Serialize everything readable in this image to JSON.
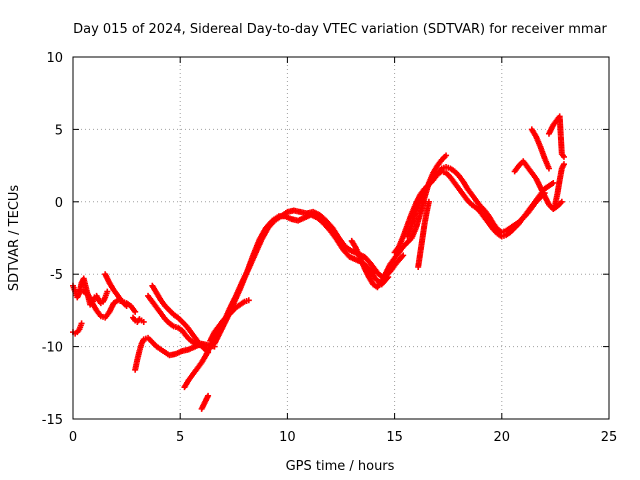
{
  "chart_data": {
    "type": "scatter",
    "title": "Day 015 of 2024, Sidereal Day-to-day VTEC variation (SDTVAR) for receiver mmar",
    "xlabel": "GPS time / hours",
    "ylabel": "SDTVAR / TECUs",
    "xlim": [
      0,
      25
    ],
    "ylim": [
      -15,
      10
    ],
    "xticks": [
      0,
      5,
      10,
      15,
      20,
      25
    ],
    "yticks": [
      -15,
      -10,
      -5,
      0,
      5,
      10
    ],
    "grid": true,
    "marker": "+",
    "color": "#ff0000",
    "series": [
      {
        "x": [
          0.0,
          0.1,
          0.2,
          0.3,
          0.4,
          0.5,
          0.6,
          0.7,
          0.8,
          0.9,
          1.0,
          1.1,
          1.2,
          1.3,
          1.4,
          1.5,
          1.6
        ],
        "y": [
          -5.8,
          -6.2,
          -6.6,
          -6.3,
          -5.6,
          -5.3,
          -5.9,
          -6.5,
          -7.1,
          -7.0,
          -6.6,
          -6.5,
          -6.8,
          -7.0,
          -6.9,
          -6.6,
          -6.2
        ]
      },
      {
        "x": [
          0.0,
          0.1,
          0.2,
          0.3,
          0.4
        ],
        "y": [
          -9.0,
          -9.1,
          -9.0,
          -8.8,
          -8.4
        ]
      },
      {
        "x": [
          0.5,
          0.7,
          0.9,
          1.1,
          1.3,
          1.5,
          1.7,
          1.9,
          2.1,
          2.3,
          2.5,
          2.7,
          2.9
        ],
        "y": [
          -6.2,
          -6.4,
          -7.0,
          -7.5,
          -7.9,
          -8.0,
          -7.6,
          -7.0,
          -6.8,
          -6.9,
          -7.0,
          -7.2,
          -7.6
        ]
      },
      {
        "x": [
          1.5,
          1.7,
          1.9,
          2.1,
          2.3,
          2.5
        ],
        "y": [
          -5.0,
          -5.6,
          -6.1,
          -6.5,
          -6.9,
          -7.2
        ]
      },
      {
        "x": [
          2.8,
          2.9,
          3.0,
          3.1,
          3.2,
          3.3
        ],
        "y": [
          -8.0,
          -8.2,
          -8.3,
          -8.1,
          -8.2,
          -8.3
        ]
      },
      {
        "x": [
          2.9,
          3.0,
          3.1,
          3.2,
          3.3,
          3.5,
          3.7,
          3.9,
          4.2,
          4.5,
          4.8,
          5.1,
          5.4,
          5.7,
          6.0,
          6.3,
          6.6
        ],
        "y": [
          -11.6,
          -10.9,
          -10.3,
          -9.8,
          -9.5,
          -9.4,
          -9.7,
          -10.0,
          -10.3,
          -10.6,
          -10.5,
          -10.3,
          -10.2,
          -10.0,
          -9.8,
          -9.9,
          -10.0
        ]
      },
      {
        "x": [
          3.5,
          3.7,
          3.9,
          4.1,
          4.3,
          4.5,
          4.7,
          4.9,
          5.1,
          5.3,
          5.5,
          5.7,
          5.9,
          6.1
        ],
        "y": [
          -6.5,
          -6.9,
          -7.3,
          -7.7,
          -8.1,
          -8.4,
          -8.6,
          -8.7,
          -8.9,
          -9.3,
          -9.6,
          -9.8,
          -9.9,
          -10.0
        ]
      },
      {
        "x": [
          3.7,
          3.9,
          4.1,
          4.3,
          4.5,
          4.7,
          4.9,
          5.1,
          5.3,
          5.5,
          5.7,
          5.9,
          6.1,
          6.3
        ],
        "y": [
          -5.8,
          -6.3,
          -6.8,
          -7.2,
          -7.5,
          -7.8,
          -8.0,
          -8.3,
          -8.6,
          -9.0,
          -9.4,
          -9.8,
          -10.1,
          -10.4
        ]
      },
      {
        "x": [
          5.2,
          5.4,
          5.6,
          5.8,
          6.0,
          6.2,
          6.4,
          6.6,
          6.8,
          7.0,
          7.2,
          7.4
        ],
        "y": [
          -12.8,
          -12.3,
          -11.9,
          -11.5,
          -11.1,
          -10.6,
          -10.0,
          -9.4,
          -8.8,
          -8.3,
          -7.9,
          -7.6
        ]
      },
      {
        "x": [
          6.0,
          6.1,
          6.2,
          6.3
        ],
        "y": [
          -14.3,
          -14.0,
          -13.7,
          -13.4
        ]
      },
      {
        "x": [
          6.4,
          6.6,
          6.8,
          7.0,
          7.2,
          7.4,
          7.6,
          7.8,
          8.0,
          8.2
        ],
        "y": [
          -9.6,
          -9.0,
          -8.6,
          -8.2,
          -7.9,
          -7.6,
          -7.3,
          -7.1,
          -6.9,
          -6.8
        ]
      },
      {
        "x": [
          6.6,
          6.9,
          7.2,
          7.5,
          7.8,
          8.1,
          8.4,
          8.7,
          9.0,
          9.3,
          9.6,
          9.9,
          10.2,
          10.5,
          10.8,
          11.1,
          11.4,
          11.7,
          12.0,
          12.3,
          12.6,
          12.9,
          13.2,
          13.5,
          13.8,
          14.1,
          14.4,
          14.7
        ],
        "y": [
          -9.8,
          -8.9,
          -8.0,
          -7.0,
          -6.0,
          -4.9,
          -3.7,
          -2.6,
          -1.8,
          -1.3,
          -1.0,
          -1.0,
          -1.2,
          -1.3,
          -1.1,
          -0.9,
          -1.1,
          -1.5,
          -2.0,
          -2.6,
          -3.3,
          -3.8,
          -4.0,
          -4.2,
          -4.6,
          -5.3,
          -5.7,
          -5.2
        ]
      },
      {
        "x": [
          7.0,
          7.3,
          7.6,
          7.9,
          8.2,
          8.5,
          8.8,
          9.1,
          9.4,
          9.7,
          10.0,
          10.3,
          10.6,
          10.9,
          11.2,
          11.5,
          11.8,
          12.1,
          12.4,
          12.7,
          13.0,
          13.3,
          13.6,
          13.9,
          14.2,
          14.5,
          14.8,
          15.1,
          15.4
        ],
        "y": [
          -8.4,
          -7.4,
          -6.5,
          -5.5,
          -4.6,
          -3.6,
          -2.6,
          -1.8,
          -1.3,
          -1.0,
          -0.7,
          -0.6,
          -0.7,
          -0.8,
          -0.7,
          -0.9,
          -1.3,
          -1.8,
          -2.5,
          -3.1,
          -3.4,
          -3.6,
          -3.8,
          -4.3,
          -4.9,
          -5.3,
          -4.8,
          -4.2,
          -3.7
        ]
      },
      {
        "x": [
          13.0,
          13.2,
          13.4,
          13.6,
          13.8,
          14.0,
          14.2,
          14.4,
          14.6,
          14.8,
          15.0,
          15.2,
          15.4,
          15.6,
          15.8,
          16.0,
          16.2,
          16.4,
          16.6,
          16.8,
          17.0,
          17.2,
          17.4
        ],
        "y": [
          -2.7,
          -3.2,
          -3.9,
          -4.6,
          -5.2,
          -5.7,
          -5.9,
          -5.5,
          -4.9,
          -4.3,
          -3.9,
          -3.5,
          -3.1,
          -2.8,
          -2.5,
          -1.8,
          -0.8,
          0.3,
          1.3,
          2.0,
          2.5,
          2.9,
          3.2
        ]
      },
      {
        "x": [
          15.0,
          15.2,
          15.4,
          15.6,
          15.8,
          16.0,
          16.2,
          16.4,
          16.6,
          16.8,
          17.0,
          17.2,
          17.4,
          17.6,
          17.8,
          18.0,
          18.2,
          18.4,
          18.6,
          18.8,
          19.0,
          19.2,
          19.4,
          19.6,
          19.8,
          20.0,
          20.2,
          20.4,
          20.6,
          20.8,
          21.0,
          21.2,
          21.4,
          21.6,
          21.8,
          22.0
        ],
        "y": [
          -3.5,
          -3.1,
          -2.4,
          -1.6,
          -0.8,
          -0.1,
          0.5,
          0.9,
          1.2,
          1.5,
          1.9,
          2.3,
          2.4,
          2.3,
          2.1,
          1.8,
          1.4,
          0.9,
          0.5,
          0.1,
          -0.3,
          -0.6,
          -1.0,
          -1.5,
          -1.9,
          -2.1,
          -2.0,
          -1.8,
          -1.6,
          -1.4,
          -1.1,
          -0.8,
          -0.4,
          0.0,
          0.3,
          0.6
        ]
      },
      {
        "x": [
          15.6,
          15.8,
          16.0,
          16.2,
          16.4,
          16.6,
          16.8,
          17.0,
          17.2,
          17.4,
          17.6,
          17.8,
          18.0,
          18.2,
          18.4,
          18.6,
          18.8,
          19.0,
          19.2,
          19.4,
          19.6,
          19.8,
          20.0,
          20.2,
          20.4,
          20.6,
          20.8,
          21.0,
          21.2,
          21.4,
          21.6,
          21.8,
          22.0,
          22.2,
          22.4
        ],
        "y": [
          -2.4,
          -1.6,
          -0.6,
          0.2,
          0.8,
          1.2,
          1.6,
          1.9,
          2.1,
          2.0,
          1.7,
          1.3,
          0.9,
          0.5,
          0.1,
          -0.2,
          -0.4,
          -0.7,
          -1.1,
          -1.5,
          -1.9,
          -2.2,
          -2.4,
          -2.3,
          -2.1,
          -1.8,
          -1.5,
          -1.1,
          -0.7,
          -0.3,
          0.1,
          0.5,
          0.9,
          1.1,
          1.3
        ]
      },
      {
        "x": [
          20.6,
          20.8,
          21.0,
          21.2,
          21.4,
          21.6,
          21.8,
          22.0,
          22.2,
          22.4,
          22.6,
          22.8
        ],
        "y": [
          2.1,
          2.5,
          2.8,
          2.4,
          2.0,
          1.6,
          1.0,
          0.4,
          -0.2,
          -0.5,
          -0.3,
          0.0
        ]
      },
      {
        "x": [
          21.4,
          21.6,
          21.8,
          22.0,
          22.2
        ],
        "y": [
          5.0,
          4.5,
          3.8,
          3.0,
          2.3
        ]
      },
      {
        "x": [
          22.2,
          22.4,
          22.6,
          22.7,
          22.8,
          22.9
        ],
        "y": [
          4.7,
          5.3,
          5.7,
          5.9,
          3.3,
          3.1
        ]
      },
      {
        "x": [
          22.4,
          22.5,
          22.6,
          22.7,
          22.8,
          22.9
        ],
        "y": [
          -0.5,
          -0.1,
          0.6,
          1.5,
          2.3,
          2.6
        ]
      },
      {
        "x": [
          16.1,
          16.2,
          16.3,
          16.4,
          16.5,
          16.6
        ],
        "y": [
          -4.5,
          -3.5,
          -2.5,
          -1.5,
          -0.7,
          0.0
        ]
      }
    ]
  }
}
